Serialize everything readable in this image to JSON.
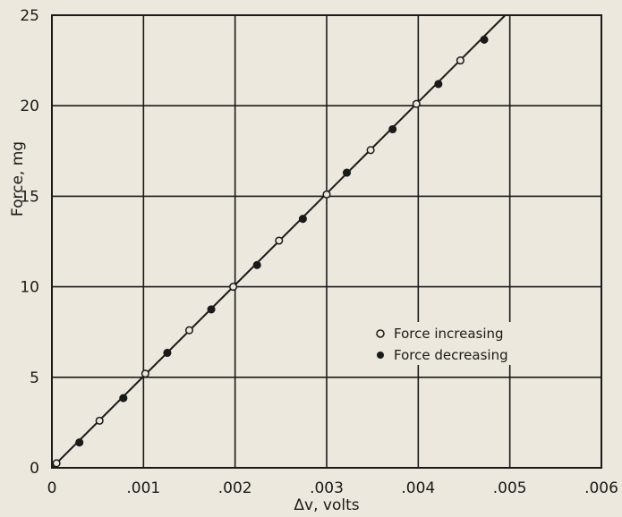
{
  "chart_data": {
    "type": "scatter",
    "title": "",
    "xlabel": "Δv, volts",
    "ylabel": "Force, mg",
    "xlim": [
      0,
      0.006
    ],
    "ylim": [
      0,
      25
    ],
    "grid": true,
    "x_ticks": [
      {
        "value": 0,
        "label": "0"
      },
      {
        "value": 0.001,
        "label": ".001"
      },
      {
        "value": 0.002,
        "label": ".002"
      },
      {
        "value": 0.003,
        "label": ".003"
      },
      {
        "value": 0.004,
        "label": ".004"
      },
      {
        "value": 0.005,
        "label": ".005"
      },
      {
        "value": 0.006,
        "label": ".006"
      }
    ],
    "y_ticks": [
      {
        "value": 0,
        "label": "0"
      },
      {
        "value": 5,
        "label": "5"
      },
      {
        "value": 10,
        "label": "10"
      },
      {
        "value": 15,
        "label": "15"
      },
      {
        "value": 20,
        "label": "20"
      },
      {
        "value": 25,
        "label": "25"
      }
    ],
    "legend_position": "center-right",
    "series": [
      {
        "name": "Force increasing",
        "marker": "open-circle",
        "x": [
          5e-05,
          0.00052,
          0.00102,
          0.0015,
          0.00198,
          0.00248,
          0.003,
          0.00348,
          0.00398,
          0.00446
        ],
        "y": [
          0.25,
          2.6,
          5.2,
          7.6,
          10.0,
          12.55,
          15.1,
          17.55,
          20.1,
          22.5
        ]
      },
      {
        "name": "Force decreasing",
        "marker": "filled-circle",
        "x": [
          0.0003,
          0.00078,
          0.00126,
          0.00174,
          0.00224,
          0.00274,
          0.00322,
          0.00372,
          0.00422,
          0.00472
        ],
        "y": [
          1.4,
          3.85,
          6.35,
          8.75,
          11.2,
          13.75,
          16.3,
          18.7,
          21.2,
          23.65
        ]
      }
    ],
    "fit_line": {
      "x": [
        0,
        0.00495
      ],
      "y": [
        0,
        25
      ]
    },
    "colors": {
      "ink": "#1a1a1a",
      "paper": "#ede8dd"
    }
  }
}
